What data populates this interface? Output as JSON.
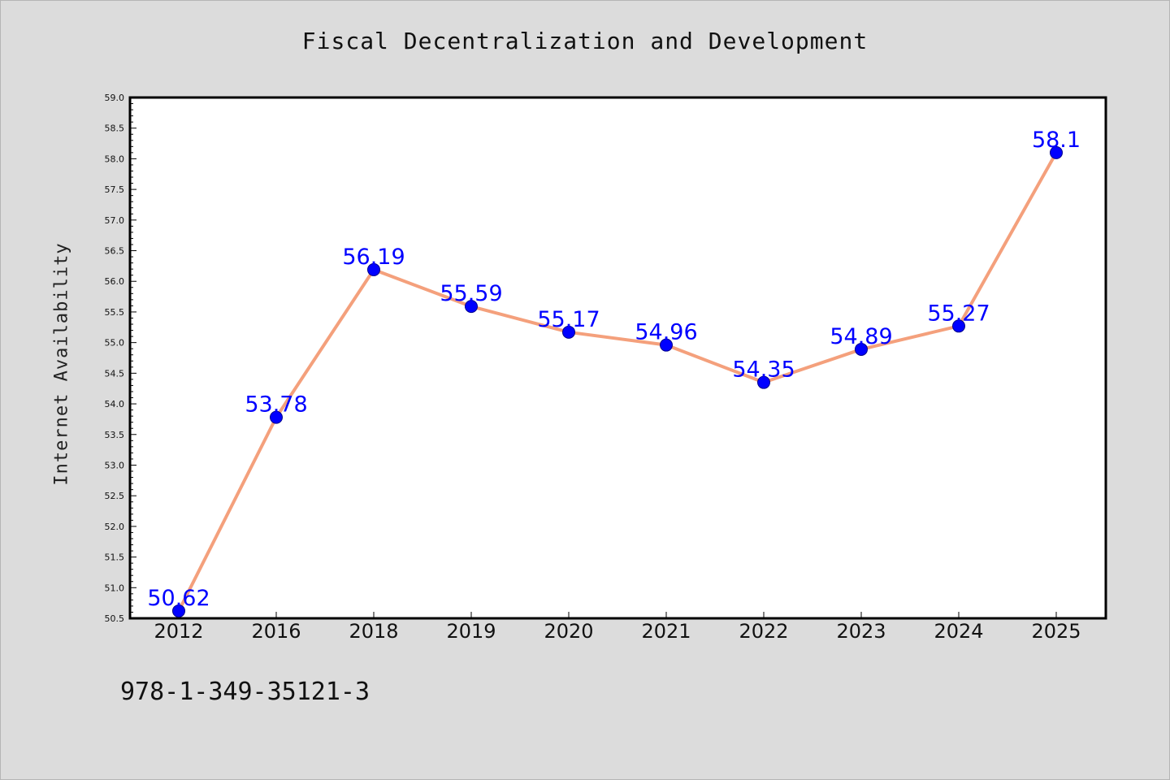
{
  "page": {
    "isbn": "978-1-349-35121-3"
  },
  "colors": {
    "line": "#f4a07c",
    "marker": "#0000ff",
    "label": "#0000ff",
    "background": "#dcdcdc",
    "plot_background": "#ffffff"
  },
  "chart_data": {
    "type": "line",
    "title": "Fiscal Decentralization and Development",
    "xlabel": "",
    "ylabel": "Internet Availability",
    "categories": [
      "2012",
      "2016",
      "2018",
      "2019",
      "2020",
      "2021",
      "2022",
      "2023",
      "2024",
      "2025"
    ],
    "series": [
      {
        "values": [
          50.62,
          53.78,
          56.19,
          55.59,
          55.17,
          54.96,
          54.35,
          54.89,
          55.27,
          58.1
        ],
        "labels": [
          "50.62",
          "53.78",
          "56.19",
          "55.59",
          "55.17",
          "54.96",
          "54.35",
          "54.89",
          "55.27",
          "58.1"
        ]
      }
    ],
    "ylim": [
      50.5,
      59.0
    ],
    "yticks": [
      "50.5",
      "51.0",
      "51.5",
      "52.0",
      "52.5",
      "53.0",
      "53.5",
      "54.0",
      "54.5",
      "55.0",
      "55.5",
      "56.0",
      "56.5",
      "57.0",
      "57.5",
      "58.0",
      "58.5",
      "59.0"
    ],
    "grid": false,
    "legend": "none"
  }
}
